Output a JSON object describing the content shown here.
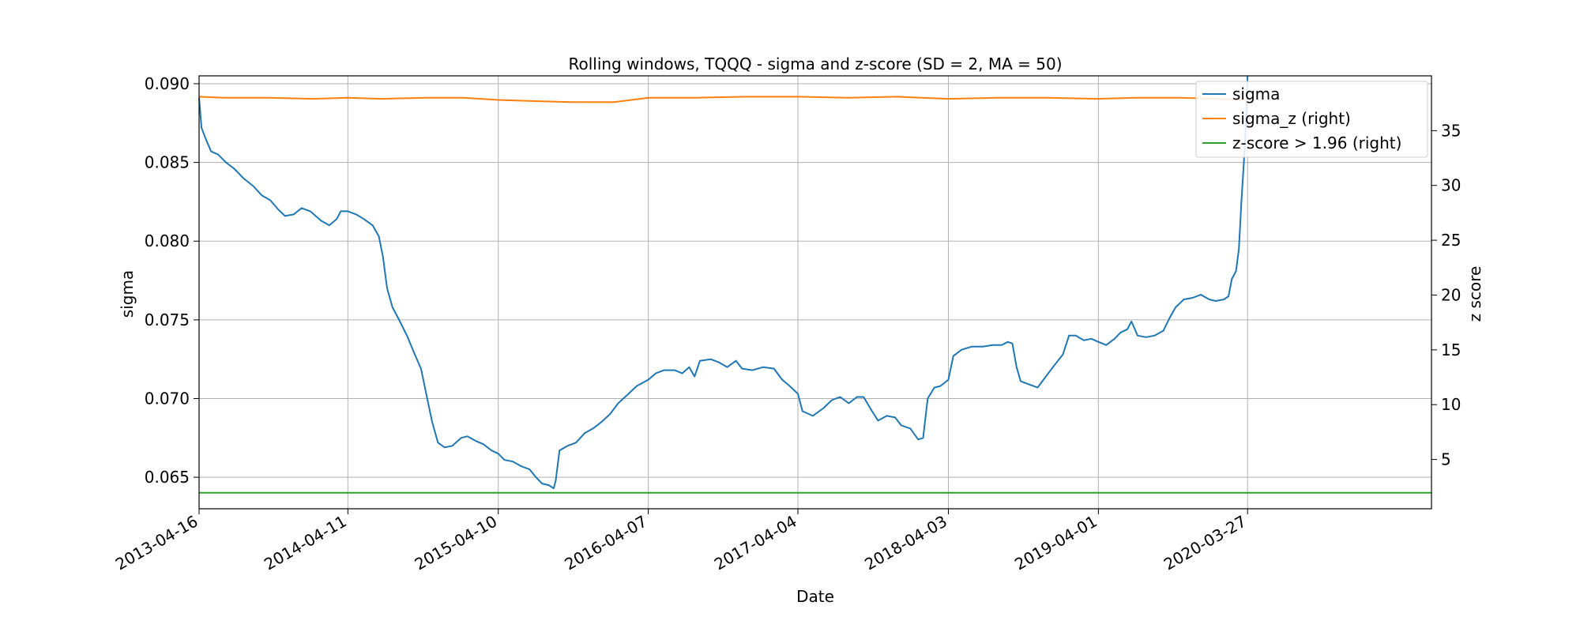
{
  "chart_data": {
    "type": "line",
    "title": "Rolling windows, TQQQ - sigma and z-score (SD = 2, MA = 50)",
    "xlabel": "Date",
    "ylabel": "sigma",
    "y2label": "z score",
    "x_tick_labels": [
      "2013-04-16",
      "2014-04-11",
      "2015-04-10",
      "2016-04-07",
      "2017-04-04",
      "2018-04-03",
      "2019-04-01",
      "2020-03-27"
    ],
    "xlim": [
      "2013-04-16",
      "2021-06-15"
    ],
    "ylim": [
      0.063,
      0.0905
    ],
    "y2lim": [
      0.5,
      40
    ],
    "y_ticks": [
      "0.065",
      "0.070",
      "0.075",
      "0.080",
      "0.085",
      "0.090"
    ],
    "y2_ticks": [
      "5",
      "10",
      "15",
      "20",
      "25",
      "30",
      "35"
    ],
    "grid": true,
    "legend_position": "top-right",
    "colors": {
      "sigma": "#1f77b4",
      "sigma_z": "#ff7f0e",
      "zscore": "#2ca02c"
    },
    "series": [
      {
        "name": "sigma",
        "axis": "left",
        "points": [
          [
            "2013-04-16",
            0.0891
          ],
          [
            "2013-04-22",
            0.0872
          ],
          [
            "2013-05-02",
            0.0865
          ],
          [
            "2013-05-15",
            0.0857
          ],
          [
            "2013-06-01",
            0.0855
          ],
          [
            "2013-06-20",
            0.085
          ],
          [
            "2013-07-10",
            0.0846
          ],
          [
            "2013-08-01",
            0.084
          ],
          [
            "2013-08-25",
            0.0835
          ],
          [
            "2013-09-15",
            0.0829
          ],
          [
            "2013-10-05",
            0.0826
          ],
          [
            "2013-10-25",
            0.082
          ],
          [
            "2013-11-10",
            0.0816
          ],
          [
            "2013-12-01",
            0.0817
          ],
          [
            "2013-12-20",
            0.0821
          ],
          [
            "2014-01-10",
            0.0819
          ],
          [
            "2014-02-05",
            0.0813
          ],
          [
            "2014-02-25",
            0.081
          ],
          [
            "2014-03-15",
            0.0814
          ],
          [
            "2014-03-25",
            0.0819
          ],
          [
            "2014-04-11",
            0.0819
          ],
          [
            "2014-05-01",
            0.0817
          ],
          [
            "2014-05-20",
            0.0814
          ],
          [
            "2014-06-10",
            0.081
          ],
          [
            "2014-06-25",
            0.0803
          ],
          [
            "2014-07-05",
            0.079
          ],
          [
            "2014-07-15",
            0.077
          ],
          [
            "2014-07-28",
            0.0758
          ],
          [
            "2014-08-15",
            0.0749
          ],
          [
            "2014-09-01",
            0.074
          ],
          [
            "2014-09-20",
            0.0728
          ],
          [
            "2014-10-05",
            0.0719
          ],
          [
            "2014-10-20",
            0.07
          ],
          [
            "2014-11-01",
            0.0685
          ],
          [
            "2014-11-15",
            0.0672
          ],
          [
            "2014-12-01",
            0.0669
          ],
          [
            "2014-12-20",
            0.067
          ],
          [
            "2015-01-10",
            0.0675
          ],
          [
            "2015-01-25",
            0.0676
          ],
          [
            "2015-02-15",
            0.0673
          ],
          [
            "2015-03-05",
            0.0671
          ],
          [
            "2015-03-25",
            0.0667
          ],
          [
            "2015-04-10",
            0.0665
          ],
          [
            "2015-04-25",
            0.0661
          ],
          [
            "2015-05-15",
            0.066
          ],
          [
            "2015-06-05",
            0.0657
          ],
          [
            "2015-06-25",
            0.0655
          ],
          [
            "2015-07-10",
            0.065
          ],
          [
            "2015-07-25",
            0.0646
          ],
          [
            "2015-08-10",
            0.0645
          ],
          [
            "2015-08-22",
            0.0643
          ],
          [
            "2015-08-27",
            0.0648
          ],
          [
            "2015-09-05",
            0.0667
          ],
          [
            "2015-09-25",
            0.067
          ],
          [
            "2015-10-15",
            0.0672
          ],
          [
            "2015-11-05",
            0.0678
          ],
          [
            "2015-11-25",
            0.0681
          ],
          [
            "2015-12-15",
            0.0685
          ],
          [
            "2016-01-05",
            0.069
          ],
          [
            "2016-01-25",
            0.0697
          ],
          [
            "2016-02-15",
            0.0702
          ],
          [
            "2016-03-10",
            0.0708
          ],
          [
            "2016-04-07",
            0.0712
          ],
          [
            "2016-04-25",
            0.0716
          ],
          [
            "2016-05-15",
            0.0718
          ],
          [
            "2016-06-10",
            0.0718
          ],
          [
            "2016-06-28",
            0.0716
          ],
          [
            "2016-07-15",
            0.072
          ],
          [
            "2016-07-28",
            0.0714
          ],
          [
            "2016-08-10",
            0.0724
          ],
          [
            "2016-09-05",
            0.0725
          ],
          [
            "2016-09-25",
            0.0723
          ],
          [
            "2016-10-15",
            0.072
          ],
          [
            "2016-11-05",
            0.0724
          ],
          [
            "2016-11-20",
            0.0719
          ],
          [
            "2016-12-15",
            0.0718
          ],
          [
            "2017-01-10",
            0.072
          ],
          [
            "2017-02-05",
            0.0719
          ],
          [
            "2017-02-25",
            0.0712
          ],
          [
            "2017-03-15",
            0.0708
          ],
          [
            "2017-04-04",
            0.0703
          ],
          [
            "2017-04-15",
            0.0692
          ],
          [
            "2017-05-10",
            0.0689
          ],
          [
            "2017-06-05",
            0.0694
          ],
          [
            "2017-06-25",
            0.0699
          ],
          [
            "2017-07-15",
            0.0701
          ],
          [
            "2017-08-05",
            0.0697
          ],
          [
            "2017-08-25",
            0.0701
          ],
          [
            "2017-09-10",
            0.0701
          ],
          [
            "2017-09-28",
            0.0693
          ],
          [
            "2017-10-15",
            0.0686
          ],
          [
            "2017-11-05",
            0.0689
          ],
          [
            "2017-11-25",
            0.0688
          ],
          [
            "2017-12-10",
            0.0683
          ],
          [
            "2018-01-01",
            0.0681
          ],
          [
            "2018-01-20",
            0.0674
          ],
          [
            "2018-02-01",
            0.0675
          ],
          [
            "2018-02-12",
            0.07
          ],
          [
            "2018-02-28",
            0.0707
          ],
          [
            "2018-03-15",
            0.0708
          ],
          [
            "2018-04-03",
            0.0712
          ],
          [
            "2018-04-15",
            0.0727
          ],
          [
            "2018-05-05",
            0.0731
          ],
          [
            "2018-05-30",
            0.0733
          ],
          [
            "2018-06-25",
            0.0733
          ],
          [
            "2018-07-20",
            0.0734
          ],
          [
            "2018-08-10",
            0.0734
          ],
          [
            "2018-08-25",
            0.0736
          ],
          [
            "2018-09-05",
            0.0735
          ],
          [
            "2018-09-15",
            0.072
          ],
          [
            "2018-09-25",
            0.0711
          ],
          [
            "2018-10-15",
            0.0709
          ],
          [
            "2018-11-05",
            0.0707
          ],
          [
            "2018-11-25",
            0.0714
          ],
          [
            "2018-12-15",
            0.0721
          ],
          [
            "2019-01-05",
            0.0728
          ],
          [
            "2019-01-20",
            0.074
          ],
          [
            "2019-02-05",
            0.074
          ],
          [
            "2019-02-25",
            0.0737
          ],
          [
            "2019-03-15",
            0.0738
          ],
          [
            "2019-04-01",
            0.0736
          ],
          [
            "2019-04-20",
            0.0734
          ],
          [
            "2019-05-10",
            0.0738
          ],
          [
            "2019-05-25",
            0.0742
          ],
          [
            "2019-06-10",
            0.0744
          ],
          [
            "2019-06-20",
            0.0749
          ],
          [
            "2019-07-05",
            0.074
          ],
          [
            "2019-07-25",
            0.0739
          ],
          [
            "2019-08-15",
            0.074
          ],
          [
            "2019-09-05",
            0.0743
          ],
          [
            "2019-09-20",
            0.0751
          ],
          [
            "2019-10-05",
            0.0758
          ],
          [
            "2019-10-25",
            0.0763
          ],
          [
            "2019-11-15",
            0.0764
          ],
          [
            "2019-12-05",
            0.0766
          ],
          [
            "2019-12-25",
            0.0763
          ],
          [
            "2020-01-10",
            0.0762
          ],
          [
            "2020-01-30",
            0.0763
          ],
          [
            "2020-02-10",
            0.0765
          ],
          [
            "2020-02-18",
            0.0776
          ],
          [
            "2020-02-28",
            0.0781
          ],
          [
            "2020-03-06",
            0.0795
          ],
          [
            "2020-03-12",
            0.0825
          ],
          [
            "2020-03-18",
            0.085
          ],
          [
            "2020-03-23",
            0.0875
          ],
          [
            "2020-03-27",
            0.0905
          ]
        ]
      },
      {
        "name": "sigma_z (right)",
        "axis": "right",
        "points": [
          [
            "2013-04-16",
            38.1
          ],
          [
            "2013-06-15",
            38.0
          ],
          [
            "2013-10-01",
            38.0
          ],
          [
            "2014-01-15",
            37.9
          ],
          [
            "2014-04-11",
            38.0
          ],
          [
            "2014-07-01",
            37.9
          ],
          [
            "2014-10-15",
            38.0
          ],
          [
            "2015-01-15",
            38.0
          ],
          [
            "2015-04-10",
            37.8
          ],
          [
            "2015-07-01",
            37.7
          ],
          [
            "2015-10-01",
            37.6
          ],
          [
            "2016-01-15",
            37.6
          ],
          [
            "2016-04-07",
            38.0
          ],
          [
            "2016-08-01",
            38.0
          ],
          [
            "2016-12-01",
            38.1
          ],
          [
            "2017-04-04",
            38.1
          ],
          [
            "2017-08-01",
            38.0
          ],
          [
            "2017-12-01",
            38.1
          ],
          [
            "2018-04-03",
            37.9
          ],
          [
            "2018-08-01",
            38.0
          ],
          [
            "2018-12-01",
            38.0
          ],
          [
            "2019-04-01",
            37.9
          ],
          [
            "2019-07-01",
            38.0
          ],
          [
            "2019-10-15",
            38.0
          ],
          [
            "2020-01-15",
            37.9
          ],
          [
            "2020-03-27",
            37.8
          ]
        ]
      },
      {
        "name": "z-score > 1.96 (right)",
        "axis": "right",
        "points": [
          [
            "2013-04-16",
            1.96
          ],
          [
            "2021-06-15",
            1.96
          ]
        ]
      }
    ]
  }
}
